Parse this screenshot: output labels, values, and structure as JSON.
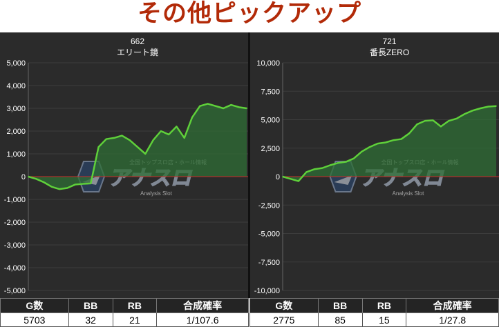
{
  "page": {
    "title": "その他ピックアップ"
  },
  "watermark": {
    "logo_text": "アナスロ",
    "tagline": "全国トップスロ店・ホール情報",
    "subtitle": "Analysis Slot"
  },
  "colors": {
    "title_red": "#b22a08",
    "line_green": "#5fd03a",
    "area_green": "#2f6e35",
    "zero_red": "#cc2b2b",
    "panel_bg": "#2b2b2b"
  },
  "chart_data": [
    {
      "type": "area",
      "title": "662",
      "subtitle": "エリート鏡",
      "ylim": [
        -5000,
        5000
      ],
      "yticks": [
        5000,
        4000,
        3000,
        2000,
        1000,
        0,
        -1000,
        -2000,
        -3000,
        -4000,
        -5000
      ],
      "ytick_labels": [
        "5,000",
        "4,000",
        "3,000",
        "2,000",
        "1,000",
        "0",
        "-1,000",
        "-2,000",
        "-3,000",
        "-4,000",
        "-5,000"
      ],
      "x": [
        0,
        1,
        2,
        3,
        4,
        5,
        6,
        7,
        8,
        9,
        10,
        11,
        12,
        13,
        14,
        15,
        16,
        17,
        18,
        19,
        20,
        21,
        22,
        23,
        24,
        25,
        26,
        27,
        28
      ],
      "values": [
        0,
        -100,
        -250,
        -450,
        -550,
        -500,
        -350,
        -320,
        -300,
        1300,
        1650,
        1700,
        1800,
        1600,
        1300,
        1000,
        1600,
        2000,
        1850,
        2200,
        1700,
        2600,
        3100,
        3200,
        3100,
        3000,
        3150,
        3050,
        3000
      ],
      "grid": true,
      "stats": {
        "headers": [
          "G数",
          "BB",
          "RB",
          "合成確率"
        ],
        "values": [
          "5703",
          "32",
          "21",
          "1/107.6"
        ]
      }
    },
    {
      "type": "area",
      "title": "721",
      "subtitle": "番長ZERO",
      "ylim": [
        -10000,
        10000
      ],
      "yticks": [
        10000,
        7500,
        5000,
        2500,
        0,
        -2500,
        -5000,
        -7500,
        -10000
      ],
      "ytick_labels": [
        "10,000",
        "7,500",
        "5,000",
        "2,500",
        "0",
        "-2,500",
        "-5,000",
        "-7,500",
        "-10,000"
      ],
      "x": [
        0,
        1,
        2,
        3,
        4,
        5,
        6,
        7,
        8,
        9,
        10,
        11,
        12,
        13,
        14,
        15,
        16,
        17,
        18,
        19,
        20,
        21,
        22,
        23,
        24,
        25,
        26,
        27
      ],
      "values": [
        0,
        -200,
        -400,
        400,
        650,
        750,
        1000,
        1200,
        1300,
        1600,
        2200,
        2600,
        2900,
        3000,
        3200,
        3300,
        3800,
        4600,
        4900,
        4950,
        4400,
        4900,
        5100,
        5500,
        5800,
        6000,
        6150,
        6200
      ],
      "grid": true,
      "stats": {
        "headers": [
          "G数",
          "BB",
          "RB",
          "合成確率"
        ],
        "values": [
          "2775",
          "85",
          "15",
          "1/27.8"
        ]
      }
    }
  ]
}
